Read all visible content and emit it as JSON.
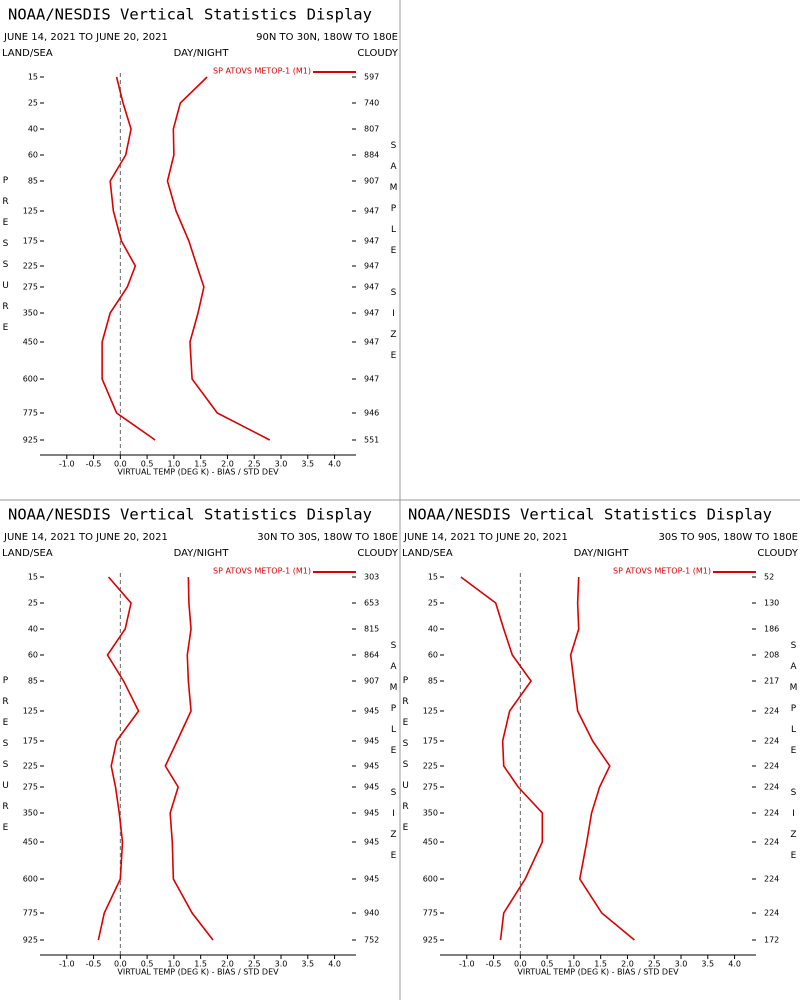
{
  "chart_data": [
    {
      "type": "line",
      "orientation": "horizontal",
      "title": "NOAA/NESDIS Vertical Statistics Display",
      "subtitle": "JUNE 14, 2021 TO JUNE 20, 2021",
      "region": "90N TO 30N, 180W TO 180E",
      "land_sea": "LAND/SEA",
      "day_night": "DAY/NIGHT",
      "cloudy": "CLOUDY",
      "y_label": "PRESSURE",
      "y2_label": "SAMPLE SIZE",
      "x_label": "VIRTUAL TEMP (DEG K) - BIAS / STD DEV",
      "categories": [
        15,
        25,
        40,
        60,
        85,
        125,
        175,
        225,
        275,
        350,
        450,
        600,
        775,
        925
      ],
      "sample_sizes": [
        597,
        740,
        807,
        884,
        907,
        947,
        947,
        947,
        947,
        947,
        947,
        947,
        946,
        551
      ],
      "series": [
        {
          "name": "SP ATOVS METOP-1 (M1)",
          "color": "#dd0000",
          "bias": [
            -0.07,
            0.05,
            0.2,
            0.1,
            -0.19,
            -0.13,
            0.02,
            0.28,
            0.13,
            -0.19,
            -0.34,
            -0.34,
            -0.07,
            0.65
          ],
          "std_dev": [
            1.62,
            1.12,
            0.99,
            1.0,
            0.88,
            1.04,
            1.28,
            1.43,
            1.56,
            1.45,
            1.3,
            1.34,
            1.81,
            2.79
          ]
        }
      ],
      "xlim": [
        -1.5,
        4.4
      ],
      "xticks": [
        {
          "value": -1,
          "label": "-1.0"
        },
        {
          "value": -0.5,
          "label": "-0.5"
        },
        {
          "value": 0,
          "label": "0.0"
        },
        {
          "value": 0.5,
          "label": "0.5"
        },
        {
          "value": 1,
          "label": "1.0"
        },
        {
          "value": 1.5,
          "label": "1.5"
        },
        {
          "value": 2,
          "label": "2.0"
        },
        {
          "value": 2.5,
          "label": "2.5"
        },
        {
          "value": 3,
          "label": "3.0"
        },
        {
          "value": 3.5,
          "label": "3.5"
        },
        {
          "value": 4,
          "label": "4.0"
        }
      ]
    },
    {
      "type": "line",
      "orientation": "horizontal",
      "title": "NOAA/NESDIS Vertical Statistics Display",
      "subtitle": "JUNE 14, 2021 TO JUNE 20, 2021",
      "region": "30N TO 30S, 180W TO 180E",
      "land_sea": "LAND/SEA",
      "day_night": "DAY/NIGHT",
      "cloudy": "CLOUDY",
      "y_label": "PRESSURE",
      "y2_label": "SAMPLE SIZE",
      "x_label": "VIRTUAL TEMP (DEG K) - BIAS / STD DEV",
      "categories": [
        15,
        25,
        40,
        60,
        85,
        125,
        175,
        225,
        275,
        350,
        450,
        600,
        775,
        925
      ],
      "sample_sizes": [
        303,
        653,
        815,
        864,
        907,
        945,
        945,
        945,
        945,
        945,
        945,
        945,
        940,
        752
      ],
      "series": [
        {
          "name": "SP ATOVS METOP-1 (M1)",
          "color": "#dd0000",
          "bias": [
            -0.22,
            0.2,
            0.09,
            -0.24,
            0.06,
            0.34,
            -0.07,
            -0.17,
            -0.09,
            -0.02,
            0.04,
            0,
            -0.3,
            -0.41
          ],
          "std_dev": [
            1.27,
            1.28,
            1.32,
            1.25,
            1.27,
            1.32,
            1.06,
            0.84,
            1.08,
            0.93,
            0.97,
            0.99,
            1.34,
            1.73
          ]
        }
      ],
      "xlim": [
        -1.5,
        4.4
      ],
      "xticks": [
        {
          "value": -1,
          "label": "-1.0"
        },
        {
          "value": -0.5,
          "label": "-0.5"
        },
        {
          "value": 0,
          "label": "0.0"
        },
        {
          "value": 0.5,
          "label": "0.5"
        },
        {
          "value": 1,
          "label": "1.0"
        },
        {
          "value": 1.5,
          "label": "1.5"
        },
        {
          "value": 2,
          "label": "2.0"
        },
        {
          "value": 2.5,
          "label": "2.5"
        },
        {
          "value": 3,
          "label": "3.0"
        },
        {
          "value": 3.5,
          "label": "3.5"
        },
        {
          "value": 4,
          "label": "4.0"
        }
      ]
    },
    {
      "type": "line",
      "orientation": "horizontal",
      "title": "NOAA/NESDIS Vertical Statistics Display",
      "subtitle": "JUNE 14, 2021 TO JUNE 20, 2021",
      "region": "30S TO 90S, 180W TO 180E",
      "land_sea": "LAND/SEA",
      "day_night": "DAY/NIGHT",
      "cloudy": "CLOUDY",
      "y_label": "PRESSURE",
      "y2_label": "SAMPLE SIZE",
      "x_label": "VIRTUAL TEMP (DEG K) - BIAS / STD DEV",
      "categories": [
        15,
        25,
        40,
        60,
        85,
        125,
        175,
        225,
        275,
        350,
        450,
        600,
        775,
        925
      ],
      "sample_sizes": [
        52,
        130,
        186,
        208,
        217,
        224,
        224,
        224,
        224,
        224,
        224,
        224,
        224,
        172
      ],
      "series": [
        {
          "name": "SP ATOVS METOP-1 (M1)",
          "color": "#dd0000",
          "bias": [
            -1.11,
            -0.46,
            -0.31,
            -0.15,
            0.2,
            -0.2,
            -0.33,
            -0.31,
            -0.04,
            0.41,
            0.41,
            0.09,
            -0.31,
            -0.37
          ],
          "std_dev": [
            1.09,
            1.07,
            1.09,
            0.94,
            1.0,
            1.07,
            1.35,
            1.67,
            1.48,
            1.33,
            1.24,
            1.11,
            1.52,
            2.13
          ]
        }
      ],
      "xlim": [
        -1.5,
        4.4
      ],
      "xticks": [
        {
          "value": -1,
          "label": "-1.0"
        },
        {
          "value": -0.5,
          "label": "-0.5"
        },
        {
          "value": 0,
          "label": "0.0"
        },
        {
          "value": 0.5,
          "label": "0.5"
        },
        {
          "value": 1,
          "label": "1.0"
        },
        {
          "value": 1.5,
          "label": "1.5"
        },
        {
          "value": 2,
          "label": "2.0"
        },
        {
          "value": 2.5,
          "label": "2.5"
        },
        {
          "value": 3,
          "label": "3.0"
        },
        {
          "value": 3.5,
          "label": "3.5"
        },
        {
          "value": 4,
          "label": "4.0"
        }
      ]
    }
  ]
}
